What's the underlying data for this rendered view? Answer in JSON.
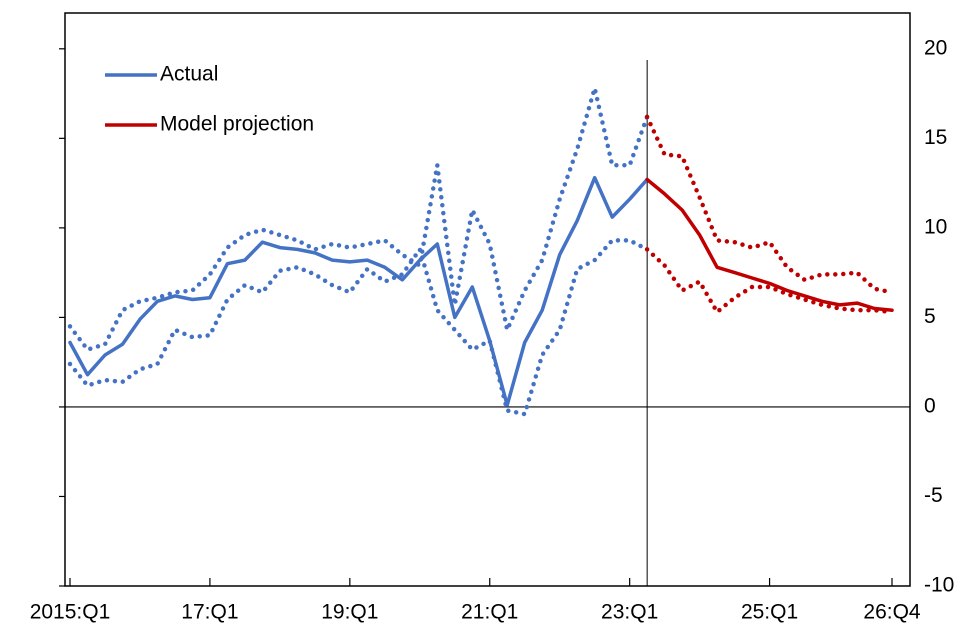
{
  "chart_data": {
    "type": "line",
    "categories": [
      "2015:Q1",
      null,
      null,
      null,
      null,
      null,
      null,
      null,
      "17:Q1",
      null,
      null,
      null,
      null,
      null,
      null,
      null,
      "19:Q1",
      null,
      null,
      null,
      null,
      null,
      null,
      null,
      "21:Q1",
      null,
      null,
      null,
      null,
      null,
      null,
      null,
      "23:Q1",
      null,
      null,
      null,
      null,
      null,
      null,
      null,
      "25:Q1",
      null,
      null,
      null,
      null,
      null,
      null,
      "26:Q4"
    ],
    "series": [
      {
        "name": "Actual",
        "color": "#4472c4",
        "style": "solid",
        "values": [
          3.6,
          1.8,
          2.9,
          3.5,
          4.9,
          5.9,
          6.2,
          6.0,
          6.1,
          8.0,
          8.2,
          9.2,
          8.9,
          8.8,
          8.6,
          8.2,
          8.1,
          8.2,
          7.8,
          7.1,
          8.2,
          9.1,
          5.0,
          6.7,
          3.7,
          0.1,
          3.6,
          5.4,
          8.5,
          10.4,
          12.8,
          10.6,
          11.6,
          12.7,
          null,
          null,
          null,
          null,
          null,
          null,
          null,
          null,
          null,
          null,
          null,
          null,
          null,
          null
        ]
      },
      {
        "color": "#4472c4",
        "style": "dotted",
        "values": [
          4.5,
          3.2,
          3.5,
          5.4,
          5.9,
          6.1,
          6.4,
          6.5,
          7.4,
          8.9,
          9.6,
          9.9,
          9.6,
          9.3,
          8.8,
          9.1,
          8.9,
          9.1,
          9.3,
          8.5,
          7.9,
          13.5,
          5.7,
          11.0,
          9.1,
          4.3,
          6.5,
          8.2,
          11.6,
          14.4,
          17.8,
          13.5,
          13.5,
          16.2,
          null,
          null,
          null,
          null,
          null,
          null,
          null,
          null,
          null,
          null,
          null,
          null,
          null,
          null
        ]
      },
      {
        "color": "#4472c4",
        "style": "dotted",
        "values": [
          2.4,
          1.2,
          1.5,
          1.4,
          2.1,
          2.4,
          4.3,
          3.9,
          4.0,
          6.0,
          6.8,
          6.4,
          7.6,
          7.8,
          7.4,
          6.8,
          6.4,
          7.7,
          7.0,
          7.4,
          8.8,
          5.4,
          4.3,
          3.2,
          3.7,
          -0.2,
          -0.4,
          2.9,
          4.3,
          7.7,
          8.2,
          9.3,
          9.3,
          8.8,
          null,
          null,
          null,
          null,
          null,
          null,
          null,
          null,
          null,
          null,
          null,
          null,
          null,
          null
        ]
      },
      {
        "name": "Model projection",
        "color": "#c00000",
        "style": "solid",
        "values": [
          null,
          null,
          null,
          null,
          null,
          null,
          null,
          null,
          null,
          null,
          null,
          null,
          null,
          null,
          null,
          null,
          null,
          null,
          null,
          null,
          null,
          null,
          null,
          null,
          null,
          null,
          null,
          null,
          null,
          null,
          null,
          null,
          null,
          12.7,
          11.9,
          11.0,
          9.6,
          7.8,
          7.5,
          7.2,
          6.9,
          6.5,
          6.2,
          5.9,
          5.7,
          5.8,
          5.5,
          5.4
        ]
      },
      {
        "color": "#c00000",
        "style": "dotted",
        "values": [
          null,
          null,
          null,
          null,
          null,
          null,
          null,
          null,
          null,
          null,
          null,
          null,
          null,
          null,
          null,
          null,
          null,
          null,
          null,
          null,
          null,
          null,
          null,
          null,
          null,
          null,
          null,
          null,
          null,
          null,
          null,
          null,
          null,
          16.2,
          14.1,
          14.0,
          11.7,
          9.3,
          9.2,
          8.9,
          9.2,
          7.8,
          7.1,
          7.4,
          7.4,
          7.5,
          6.6,
          6.4
        ]
      },
      {
        "color": "#c00000",
        "style": "dotted",
        "values": [
          null,
          null,
          null,
          null,
          null,
          null,
          null,
          null,
          null,
          null,
          null,
          null,
          null,
          null,
          null,
          null,
          null,
          null,
          null,
          null,
          null,
          null,
          null,
          null,
          null,
          null,
          null,
          null,
          null,
          null,
          null,
          null,
          null,
          8.8,
          7.9,
          6.5,
          7.0,
          5.3,
          6.1,
          6.7,
          6.7,
          6.3,
          6.0,
          5.7,
          5.5,
          5.4,
          5.4,
          5.3
        ]
      }
    ],
    "ylim": [
      -10,
      22
    ],
    "yticks": [
      -10,
      -5,
      0,
      5,
      10,
      15,
      20
    ],
    "legend": "upper-left"
  }
}
